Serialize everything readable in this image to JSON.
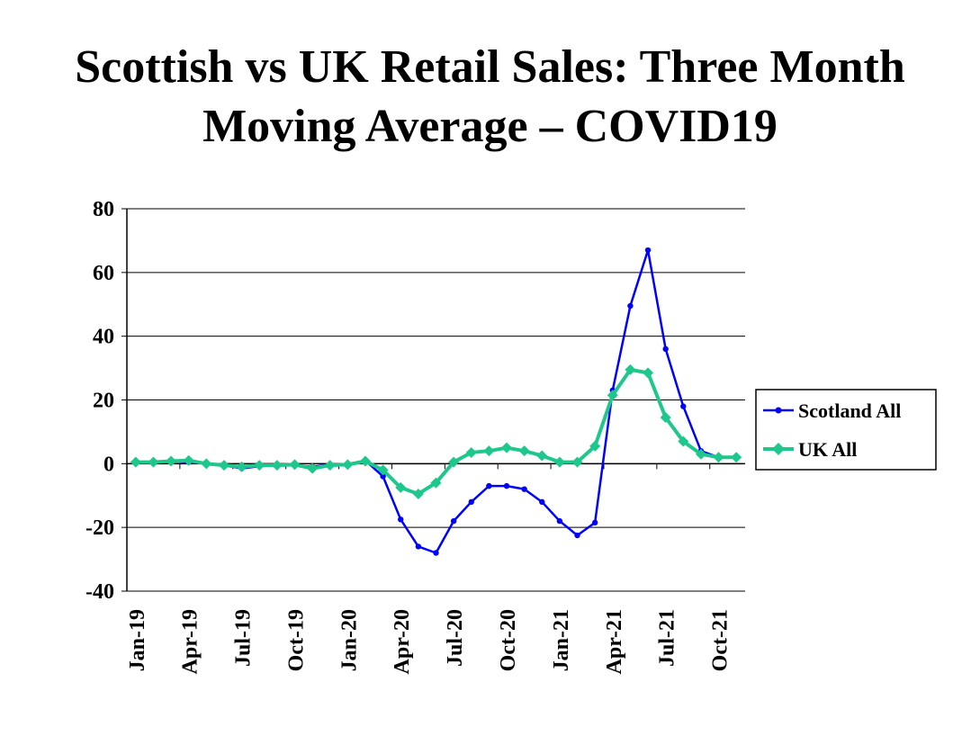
{
  "chart_data": {
    "type": "line",
    "title_lines": [
      "Scottish vs UK Retail Sales: Three Month",
      "Moving Average – COVID19"
    ],
    "xlabel": "",
    "ylabel": "",
    "ylim": [
      -40,
      80
    ],
    "yticks": [
      80,
      60,
      40,
      20,
      0,
      -20,
      -40
    ],
    "grid": true,
    "legend_position": "right",
    "x": [
      "Jan-19",
      "Feb-19",
      "Mar-19",
      "Apr-19",
      "May-19",
      "Jun-19",
      "Jul-19",
      "Aug-19",
      "Sep-19",
      "Oct-19",
      "Nov-19",
      "Dec-19",
      "Jan-20",
      "Feb-20",
      "Mar-20",
      "Apr-20",
      "May-20",
      "Jun-20",
      "Jul-20",
      "Aug-20",
      "Sep-20",
      "Oct-20",
      "Nov-20",
      "Dec-20",
      "Jan-21",
      "Feb-21",
      "Mar-21",
      "Apr-21",
      "May-21",
      "Jun-21",
      "Jul-21",
      "Aug-21",
      "Sep-21",
      "Oct-21",
      "Nov-21"
    ],
    "x_tick_labels": [
      "Jan-19",
      "Apr-19",
      "Jul-19",
      "Oct-19",
      "Jan-20",
      "Apr-20",
      "Jul-20",
      "Oct-20",
      "Jan-21",
      "Apr-21",
      "Jul-21",
      "Oct-21"
    ],
    "series": [
      {
        "name": "Scotland All",
        "color": "#0000ff",
        "marker": "circle",
        "values": [
          0.5,
          0.3,
          0.8,
          0.5,
          0.0,
          -0.5,
          -1.5,
          -0.8,
          -0.5,
          -0.5,
          -1.0,
          -0.3,
          -0.2,
          1.0,
          -4.0,
          -17.5,
          -26.0,
          -28.0,
          -18.0,
          -12.0,
          -7.0,
          -7.0,
          -8.0,
          -12.0,
          -18.0,
          -22.5,
          -18.5,
          23.0,
          49.5,
          67.0,
          36.0,
          18.0,
          4.0,
          2.0,
          2.0
        ]
      },
      {
        "name": "UK All",
        "color": "#1ec88c",
        "marker": "diamond",
        "values": [
          0.5,
          0.5,
          0.8,
          1.0,
          0.0,
          -0.5,
          -1.0,
          -0.5,
          -0.5,
          -0.3,
          -1.5,
          -0.5,
          -0.3,
          0.8,
          -2.0,
          -7.5,
          -9.5,
          -6.0,
          0.5,
          3.5,
          4.0,
          5.0,
          4.0,
          2.5,
          0.5,
          0.5,
          5.5,
          21.5,
          29.5,
          28.5,
          14.5,
          7.0,
          3.0,
          2.0,
          2.0
        ]
      }
    ]
  }
}
